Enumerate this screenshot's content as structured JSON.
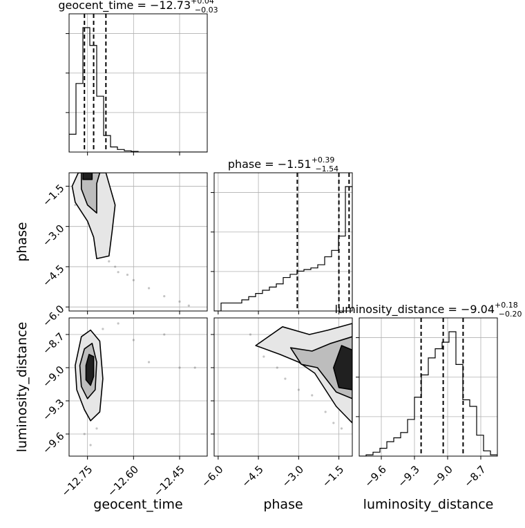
{
  "chart_data": {
    "type": "corner",
    "parameters": [
      "geocent_time",
      "phase",
      "luminosity_distance"
    ],
    "titles": {
      "geocent_time": {
        "name": "geocent_time",
        "median": "−12.73",
        "plus": "+0.04",
        "minus": "−0.03"
      },
      "phase": {
        "name": "phase",
        "median": "−1.51",
        "plus": "+0.39",
        "minus": "−1.54"
      },
      "luminosity_distance": {
        "name": "luminosity_distance",
        "median": "−9.04",
        "plus": "+0.18",
        "minus": "−0.20"
      }
    },
    "axis_labels": {
      "x": [
        "geocent_time",
        "phase",
        "luminosity_distance"
      ],
      "y": [
        "phase",
        "luminosity_distance"
      ]
    },
    "ranges": {
      "geocent_time": [
        -12.81,
        -12.36
      ],
      "phase": [
        -6.15,
        -1.0
      ],
      "luminosity_distance": [
        -9.8,
        -8.55
      ]
    },
    "ticks": {
      "geocent_time": {
        "values": [
          -12.75,
          -12.6,
          -12.45
        ],
        "labels": [
          "−12.75",
          "−12.60",
          "−12.45"
        ]
      },
      "phase": {
        "values": [
          -6.0,
          -4.5,
          -3.0,
          -1.5
        ],
        "labels": [
          "−6.0",
          "−4.5",
          "−3.0",
          "−1.5"
        ]
      },
      "luminosity_distance": {
        "values": [
          -9.6,
          -9.3,
          -9.0,
          -8.7
        ],
        "labels": [
          "−9.6",
          "−9.3",
          "−9.0",
          "−8.7"
        ]
      }
    },
    "quantiles": {
      "geocent_time": [
        -12.76,
        -12.73,
        -12.69
      ],
      "phase": [
        -3.05,
        -1.5,
        -1.12
      ],
      "luminosity_distance": [
        -9.24,
        -9.04,
        -8.86
      ]
    },
    "histograms": {
      "geocent_time": {
        "edges": [
          -12.81,
          -12.7875,
          -12.765,
          -12.7425,
          -12.72,
          -12.6975,
          -12.675,
          -12.6525,
          -12.63,
          -12.6075,
          -12.585,
          -12.5625,
          -12.54,
          -12.5175,
          -12.495,
          -12.4725,
          -12.45,
          -12.4275,
          -12.405,
          -12.3825,
          -12.36
        ],
        "counts": [
          0.14,
          0.54,
          0.98,
          0.84,
          0.44,
          0.13,
          0.04,
          0.02,
          0.01,
          0.005,
          0,
          0,
          0,
          0,
          0,
          0,
          0,
          0,
          0,
          0
        ]
      },
      "phase": {
        "edges": [
          -6.15,
          -5.8925,
          -5.635,
          -5.3775,
          -5.12,
          -4.8625,
          -4.605,
          -4.3475,
          -4.09,
          -3.8325,
          -3.575,
          -3.3175,
          -3.06,
          -2.8025,
          -2.545,
          -2.2875,
          -2.03,
          -1.7725,
          -1.515,
          -1.2575,
          -1.0
        ],
        "counts": [
          0.0,
          0.05,
          0.05,
          0.05,
          0.07,
          0.09,
          0.11,
          0.13,
          0.15,
          0.17,
          0.21,
          0.23,
          0.25,
          0.26,
          0.27,
          0.29,
          0.34,
          0.38,
          0.47,
          0.78
        ]
      },
      "luminosity_distance": {
        "edges": [
          -9.8,
          -9.7375,
          -9.675,
          -9.6125,
          -9.55,
          -9.4875,
          -9.425,
          -9.3625,
          -9.3,
          -9.2375,
          -9.175,
          -9.1125,
          -9.05,
          -8.9875,
          -8.925,
          -8.8625,
          -8.8,
          -8.7375,
          -8.675,
          -8.6125,
          -8.55
        ],
        "counts": [
          0.0,
          0.01,
          0.03,
          0.06,
          0.11,
          0.14,
          0.18,
          0.28,
          0.45,
          0.62,
          0.75,
          0.82,
          0.87,
          0.95,
          0.7,
          0.43,
          0.38,
          0.16,
          0.04,
          0.01
        ]
      }
    },
    "contours": {
      "phase_vs_geocent_time": [
        [
          [
            -12.78,
            -1.0
          ],
          [
            -12.8,
            -1.5
          ],
          [
            -12.79,
            -2.1
          ],
          [
            -12.75,
            -2.8
          ],
          [
            -12.73,
            -3.4
          ],
          [
            -12.72,
            -4.2
          ],
          [
            -12.68,
            -4.1
          ],
          [
            -12.67,
            -3.2
          ],
          [
            -12.66,
            -2.2
          ],
          [
            -12.68,
            -1.4
          ],
          [
            -12.69,
            -1.0
          ]
        ],
        [
          [
            -12.77,
            -1.0
          ],
          [
            -12.77,
            -1.6
          ],
          [
            -12.75,
            -2.2
          ],
          [
            -12.72,
            -2.5
          ],
          [
            -12.72,
            -2.0
          ],
          [
            -12.72,
            -1.4
          ],
          [
            -12.71,
            -1.0
          ]
        ],
        [
          [
            -12.765,
            -1.0
          ],
          [
            -12.765,
            -1.25
          ],
          [
            -12.735,
            -1.25
          ],
          [
            -12.735,
            -1.0
          ]
        ]
      ],
      "luminosity_distance_vs_geocent_time": [
        [
          [
            -12.79,
            -8.98
          ],
          [
            -12.785,
            -9.2
          ],
          [
            -12.76,
            -9.38
          ],
          [
            -12.74,
            -9.48
          ],
          [
            -12.71,
            -9.4
          ],
          [
            -12.7,
            -9.1
          ],
          [
            -12.71,
            -8.76
          ],
          [
            -12.74,
            -8.66
          ],
          [
            -12.77,
            -8.72
          ]
        ],
        [
          [
            -12.775,
            -8.98
          ],
          [
            -12.77,
            -9.17
          ],
          [
            -12.75,
            -9.28
          ],
          [
            -12.725,
            -9.2
          ],
          [
            -12.72,
            -8.95
          ],
          [
            -12.735,
            -8.78
          ],
          [
            -12.76,
            -8.83
          ]
        ],
        [
          [
            -12.755,
            -8.98
          ],
          [
            -12.755,
            -9.11
          ],
          [
            -12.74,
            -9.16
          ],
          [
            -12.73,
            -9.08
          ],
          [
            -12.73,
            -8.9
          ],
          [
            -12.745,
            -8.88
          ]
        ]
      ],
      "luminosity_distance_vs_phase": [
        [
          [
            -4.6,
            -8.8
          ],
          [
            -3.6,
            -8.63
          ],
          [
            -2.6,
            -8.7
          ],
          [
            -1.9,
            -8.66
          ],
          [
            -1.0,
            -8.6
          ],
          [
            -1.0,
            -9.5
          ],
          [
            -1.6,
            -9.35
          ],
          [
            -2.4,
            -9.05
          ],
          [
            -3.0,
            -8.95
          ],
          [
            -3.7,
            -8.88
          ]
        ],
        [
          [
            -3.3,
            -8.82
          ],
          [
            -2.5,
            -8.85
          ],
          [
            -1.8,
            -8.78
          ],
          [
            -1.0,
            -8.72
          ],
          [
            -1.0,
            -9.28
          ],
          [
            -1.6,
            -9.22
          ],
          [
            -2.3,
            -9.0
          ],
          [
            -2.9,
            -8.97
          ]
        ],
        [
          [
            -1.7,
            -9.0
          ],
          [
            -1.4,
            -8.8
          ],
          [
            -1.0,
            -8.84
          ],
          [
            -1.0,
            -9.2
          ],
          [
            -1.5,
            -9.18
          ]
        ]
      ]
    },
    "points": {
      "phase_vs_geocent_time": [
        [
          -12.75,
          -1.3
        ],
        [
          -12.78,
          -1.8
        ],
        [
          -12.72,
          -2.4
        ],
        [
          -12.7,
          -3.6
        ],
        [
          -12.68,
          -4.3
        ],
        [
          -12.65,
          -4.7
        ],
        [
          -12.6,
          -5.0
        ],
        [
          -12.55,
          -5.3
        ],
        [
          -12.5,
          -5.6
        ],
        [
          -12.45,
          -5.8
        ],
        [
          -12.42,
          -5.95
        ],
        [
          -12.66,
          -4.5
        ],
        [
          -12.62,
          -4.8
        ],
        [
          -12.74,
          -3.0
        ],
        [
          -12.79,
          -2.2
        ]
      ],
      "luminosity_distance_vs_geocent_time": [
        [
          -12.7,
          -8.65
        ],
        [
          -12.65,
          -8.6
        ],
        [
          -12.6,
          -8.75
        ],
        [
          -12.55,
          -8.95
        ],
        [
          -12.5,
          -8.7
        ],
        [
          -12.45,
          -9.0
        ],
        [
          -12.4,
          -9.0
        ],
        [
          -12.76,
          -9.6
        ],
        [
          -12.74,
          -9.7
        ],
        [
          -12.72,
          -9.55
        ]
      ],
      "luminosity_distance_vs_phase": [
        [
          -4.8,
          -8.7
        ],
        [
          -4.3,
          -8.9
        ],
        [
          -3.8,
          -9.0
        ],
        [
          -3.5,
          -9.1
        ],
        [
          -3.0,
          -9.2
        ],
        [
          -2.5,
          -9.25
        ],
        [
          -2.0,
          -9.4
        ],
        [
          -1.7,
          -9.5
        ],
        [
          -1.4,
          -9.55
        ],
        [
          -4.0,
          -8.75
        ],
        [
          -3.2,
          -8.75
        ],
        [
          -2.8,
          -8.75
        ]
      ]
    },
    "grid": true
  }
}
